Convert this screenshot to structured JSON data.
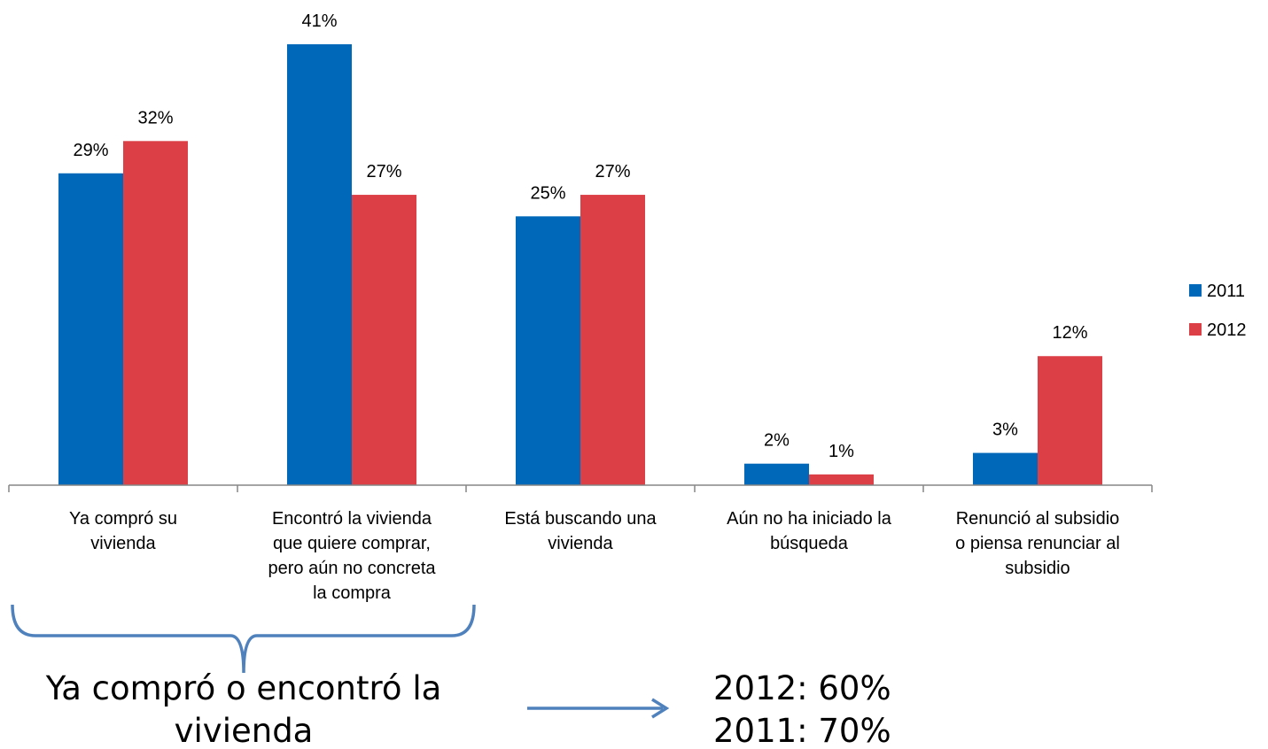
{
  "chart_data": {
    "type": "bar",
    "categories": [
      "Ya compró su\nvivienda",
      "Encontró la vivienda\nque quiere comprar,\npero aún no concreta\nla compra",
      "Está buscando una\nvivienda",
      "Aún no ha iniciado la\nbúsqueda",
      "Renunció al subsidio\no piensa renunciar al\nsubsidio"
    ],
    "series": [
      {
        "name": "2011",
        "color": "#0068b8",
        "values": [
          29,
          41,
          25,
          2,
          3
        ],
        "value_labels": [
          "29%",
          "41%",
          "25%",
          "2%",
          "3%"
        ]
      },
      {
        "name": "2012",
        "color": "#dc3f46",
        "values": [
          32,
          27,
          27,
          1,
          12
        ],
        "value_labels": [
          "32%",
          "27%",
          "27%",
          "1%",
          "12%"
        ]
      }
    ],
    "legend": "right",
    "annotations": [
      "Ya compró o encontró la\nvivienda",
      "2012: 60%",
      "2011: 70%"
    ]
  }
}
